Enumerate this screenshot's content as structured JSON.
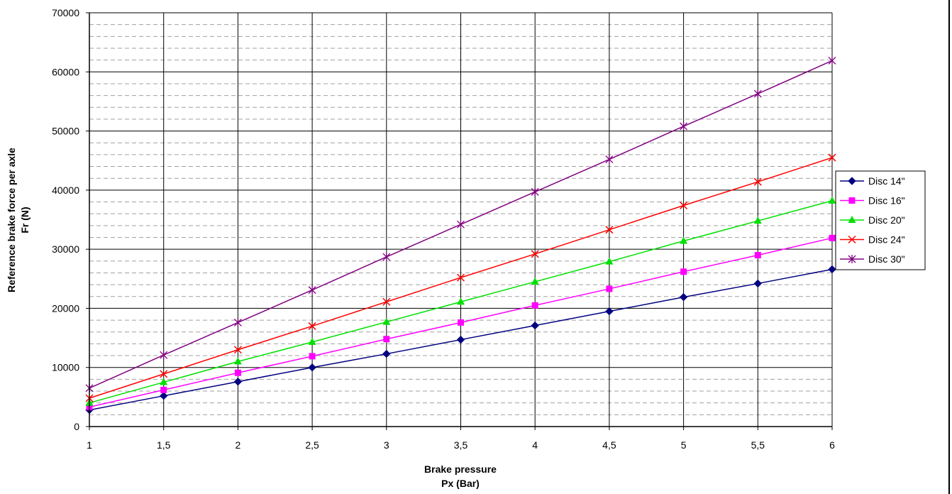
{
  "chart_data": {
    "type": "line",
    "xlabel_lines": [
      "Brake pressure",
      "Px (Bar)"
    ],
    "ylabel_lines": [
      "Reference brake force per axle",
      "Fr (N)"
    ],
    "x": [
      1,
      1.5,
      2,
      2.5,
      3,
      3.5,
      4,
      4.5,
      5,
      5.5,
      6
    ],
    "x_tick_labels": [
      "1",
      "1,5",
      "2",
      "2,5",
      "3",
      "3,5",
      "4",
      "4,5",
      "5",
      "5,5",
      "6"
    ],
    "xlim": [
      1,
      6
    ],
    "ylim": [
      0,
      70000
    ],
    "y_ticks": [
      0,
      10000,
      20000,
      30000,
      40000,
      50000,
      60000,
      70000
    ],
    "y_tick_labels": [
      "0",
      "10000",
      "20000",
      "30000",
      "40000",
      "50000",
      "60000",
      "70000"
    ],
    "y_minor_step": 2000,
    "grid": true,
    "legend_position": "right",
    "series": [
      {
        "name": "Disc 14\"",
        "color": "#000080",
        "marker": "diamond",
        "values": [
          2800,
          5200,
          7600,
          10000,
          12300,
          14700,
          17100,
          19500,
          21900,
          24200,
          26600
        ]
      },
      {
        "name": "Disc 16\"",
        "color": "#ff00ff",
        "marker": "square",
        "values": [
          3300,
          6200,
          9100,
          11900,
          14800,
          17600,
          20500,
          23300,
          26200,
          29000,
          31900
        ]
      },
      {
        "name": "Disc 20\"",
        "color": "#00e000",
        "marker": "triangle",
        "values": [
          4000,
          7500,
          11000,
          14300,
          17700,
          21100,
          24500,
          27900,
          31400,
          34800,
          38200
        ]
      },
      {
        "name": "Disc 24\"",
        "color": "#ff0000",
        "marker": "x",
        "values": [
          4800,
          8900,
          13000,
          17000,
          21100,
          25200,
          29200,
          33300,
          37400,
          41400,
          45500
        ]
      },
      {
        "name": "Disc 30\"",
        "color": "#800080",
        "marker": "star",
        "values": [
          6500,
          12100,
          17600,
          23100,
          28700,
          34200,
          39700,
          45200,
          50800,
          56300,
          61900
        ]
      }
    ]
  }
}
